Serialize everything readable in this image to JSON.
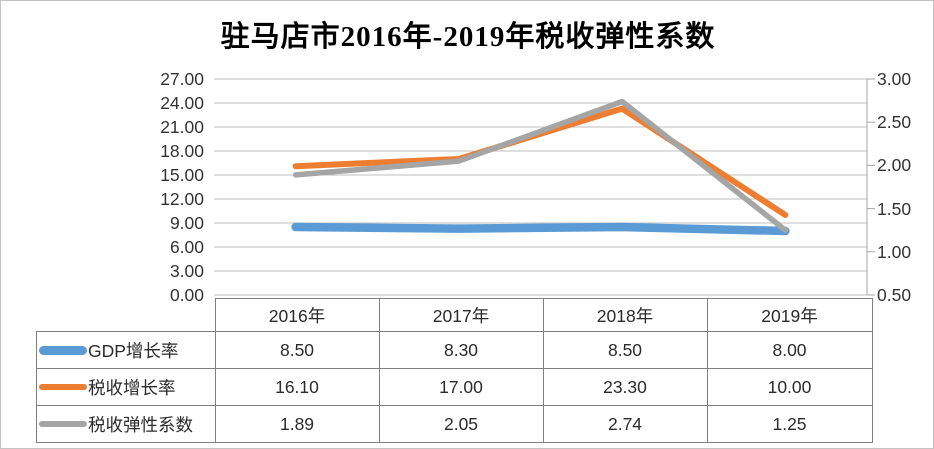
{
  "title": "驻马店市2016年-2019年税收弹性系数",
  "chart_data": {
    "type": "line",
    "title": "驻马店市2016年-2019年税收弹性系数",
    "categories": [
      "2016年",
      "2017年",
      "2018年",
      "2019年"
    ],
    "series": [
      {
        "name": "GDP增长率",
        "axis": "left",
        "color": "#5B9BD5",
        "line_width": 8.5,
        "values": [
          8.5,
          8.3,
          8.5,
          8.0
        ]
      },
      {
        "name": "税收增长率",
        "axis": "left",
        "color": "#ED7D31",
        "line_width": 6,
        "values": [
          16.1,
          17.0,
          23.3,
          10.0
        ]
      },
      {
        "name": "税收弹性系数",
        "axis": "right",
        "color": "#A5A5A5",
        "line_width": 5.5,
        "values": [
          1.89,
          2.05,
          2.74,
          1.25
        ]
      }
    ],
    "left_axis": {
      "min": 0,
      "max": 27,
      "step": 3,
      "tick_labels": [
        "27.00",
        "24.00",
        "21.00",
        "18.00",
        "15.00",
        "12.00",
        "9.00",
        "6.00",
        "3.00",
        "0.00"
      ]
    },
    "right_axis": {
      "min": 0.5,
      "max": 3.0,
      "step": 0.5,
      "tick_labels": [
        "3.00",
        "2.50",
        "2.00",
        "1.50",
        "1.00",
        "0.50"
      ]
    },
    "grid": true,
    "gridline_color": "#bfbfbf",
    "axis_line_color": "#a6a6a6",
    "legend_position": "data-table-left"
  },
  "table": {
    "year_headers": [
      "2016年",
      "2017年",
      "2018年",
      "2019年"
    ],
    "rows": [
      {
        "label": "GDP增长率",
        "values": [
          "8.50",
          "8.30",
          "8.50",
          "8.00"
        ]
      },
      {
        "label": "税收增长率",
        "values": [
          "16.10",
          "17.00",
          "23.30",
          "10.00"
        ]
      },
      {
        "label": "税收弹性系数",
        "values": [
          "1.89",
          "2.05",
          "2.74",
          "1.25"
        ]
      }
    ],
    "border_color": "#7f7f7f"
  }
}
